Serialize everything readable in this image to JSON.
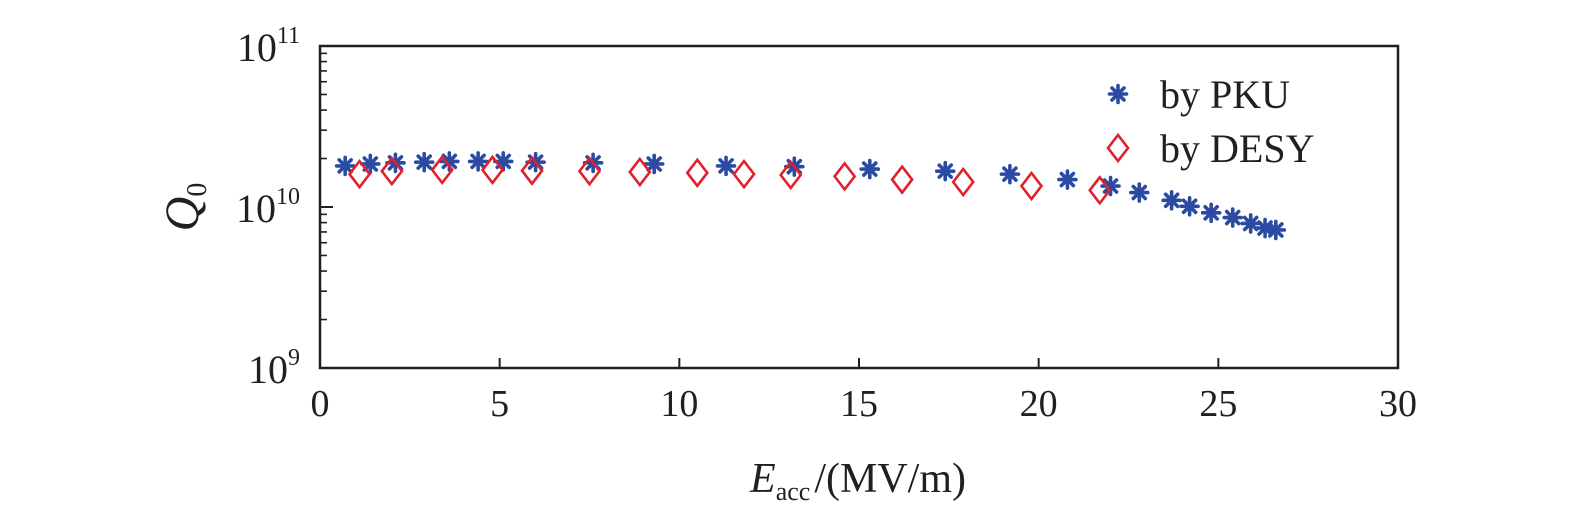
{
  "chart_data": {
    "type": "scatter",
    "xlabel": {
      "symbol": "E",
      "subscript": "acc",
      "unit": "/(MV/m)"
    },
    "ylabel": {
      "symbol": "Q",
      "subscript": "0"
    },
    "xlim": [
      0,
      30
    ],
    "ylim": [
      1000000000.0,
      100000000000.0
    ],
    "yscale": "log",
    "xticks": [
      "0",
      "5",
      "10",
      "15",
      "20",
      "25",
      "30"
    ],
    "yticks": [
      {
        "value": 1000000000.0,
        "base": "10",
        "exp": "9"
      },
      {
        "value": 10000000000.0,
        "base": "10",
        "exp": "10"
      },
      {
        "value": 100000000000.0,
        "base": "10",
        "exp": "11"
      }
    ],
    "grid": false,
    "legend_position": "top-right",
    "series": [
      {
        "name": "by PKU",
        "marker": "asterisk",
        "color": "#2b4ba3",
        "points": [
          [
            0.7,
            18000000000.0
          ],
          [
            1.4,
            18500000000.0
          ],
          [
            2.1,
            18800000000.0
          ],
          [
            2.9,
            19000000000.0
          ],
          [
            3.6,
            19200000000.0
          ],
          [
            4.4,
            19200000000.0
          ],
          [
            5.1,
            19200000000.0
          ],
          [
            6.0,
            19000000000.0
          ],
          [
            7.6,
            18800000000.0
          ],
          [
            9.3,
            18500000000.0
          ],
          [
            11.3,
            18000000000.0
          ],
          [
            13.2,
            17800000000.0
          ],
          [
            15.3,
            17200000000.0
          ],
          [
            17.4,
            16700000000.0
          ],
          [
            19.2,
            16000000000.0
          ],
          [
            20.8,
            14800000000.0
          ],
          [
            22.0,
            13500000000.0
          ],
          [
            22.8,
            12300000000.0
          ],
          [
            23.7,
            11000000000.0
          ],
          [
            24.2,
            10100000000.0
          ],
          [
            24.8,
            9200000000.0
          ],
          [
            25.4,
            8600000000.0
          ],
          [
            25.9,
            7900000000.0
          ],
          [
            26.3,
            7400000000.0
          ],
          [
            26.6,
            7200000000.0
          ]
        ]
      },
      {
        "name": "by DESY",
        "marker": "diamond",
        "color": "#e0202a",
        "points": [
          [
            1.1,
            16000000000.0
          ],
          [
            2.0,
            16700000000.0
          ],
          [
            3.4,
            17000000000.0
          ],
          [
            4.8,
            17000000000.0
          ],
          [
            5.9,
            16800000000.0
          ],
          [
            7.5,
            16700000000.0
          ],
          [
            8.9,
            16500000000.0
          ],
          [
            10.5,
            16300000000.0
          ],
          [
            11.8,
            16000000000.0
          ],
          [
            13.1,
            15800000000.0
          ],
          [
            14.6,
            15500000000.0
          ],
          [
            16.2,
            14800000000.0
          ],
          [
            17.9,
            14300000000.0
          ],
          [
            19.8,
            13500000000.0
          ],
          [
            21.7,
            12700000000.0
          ]
        ]
      }
    ]
  }
}
